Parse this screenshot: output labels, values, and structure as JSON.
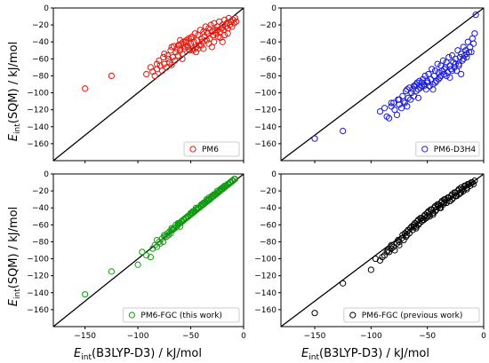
{
  "figure": {
    "ylabel_main": "E",
    "ylabel_sub": "int",
    "ylabel_rest": "(SQM) / kJ/mol",
    "xlabel_main": "E",
    "xlabel_sub": "int",
    "xlabel_rest": "(B3LYP-D3) / kJ/mol"
  },
  "chart_data": [
    {
      "type": "scatter",
      "legend": "PM6",
      "legend_position": "lower-right",
      "color": "#e8160c",
      "xlim": [
        -180,
        0
      ],
      "ylim": [
        -180,
        0
      ],
      "xticks": [
        -150,
        -100,
        -50,
        0
      ],
      "yticks": [
        -160,
        -140,
        -120,
        -100,
        -80,
        -60,
        -40,
        -20,
        0
      ],
      "reference_line": "y = x",
      "x": [
        -150,
        -125,
        -92,
        -88,
        -86,
        -84,
        -82,
        -80,
        -79,
        -77,
        -76,
        -75,
        -73,
        -72,
        -71,
        -70,
        -69,
        -68,
        -67,
        -66,
        -65,
        -64,
        -63,
        -62,
        -61,
        -60,
        -59,
        -58,
        -57,
        -56,
        -55,
        -54,
        -53,
        -52,
        -51,
        -50,
        -49,
        -48,
        -47,
        -46,
        -45,
        -44,
        -43,
        -42,
        -41,
        -40,
        -39,
        -38,
        -37,
        -36,
        -35,
        -34,
        -33,
        -32,
        -31,
        -30,
        -29,
        -28,
        -27,
        -26,
        -25,
        -24,
        -23,
        -22,
        -21,
        -20,
        -19,
        -18,
        -17,
        -16,
        -15,
        -14,
        -13,
        -12,
        -11,
        -10,
        -9,
        -8,
        -7,
        -20,
        -30,
        -45,
        -55,
        -62,
        -75,
        -82,
        -40,
        -50,
        -35,
        -25,
        -18,
        -60,
        -68,
        -48,
        -58,
        -38,
        -28,
        -22,
        -15,
        -33,
        -43,
        -53
      ],
      "y": [
        -95,
        -80,
        -78,
        -70,
        -75,
        -80,
        -72,
        -62,
        -68,
        -74,
        -58,
        -66,
        -70,
        -56,
        -60,
        -64,
        -50,
        -67,
        -58,
        -45,
        -62,
        -52,
        -48,
        -56,
        -44,
        -50,
        -42,
        -60,
        -40,
        -48,
        -46,
        -38,
        -44,
        -36,
        -50,
        -42,
        -34,
        -48,
        -40,
        -30,
        -46,
        -38,
        -32,
        -44,
        -26,
        -36,
        -40,
        -28,
        -34,
        -22,
        -38,
        -30,
        -24,
        -36,
        -20,
        -28,
        -32,
        -18,
        -26,
        -30,
        -22,
        -34,
        -16,
        -28,
        -24,
        -20,
        -26,
        -14,
        -22,
        -18,
        -24,
        -12,
        -20,
        -16,
        -22,
        -14,
        -18,
        -12,
        -16,
        -40,
        -46,
        -52,
        -40,
        -44,
        -54,
        -66,
        -44,
        -36,
        -28,
        -26,
        -32,
        -38,
        -46,
        -50,
        -54,
        -48,
        -40,
        -35,
        -30,
        -42,
        -48,
        -46
      ]
    },
    {
      "type": "scatter",
      "legend": "PM6-D3H4",
      "legend_position": "lower-right",
      "color": "#1a1adb",
      "xlim": [
        -180,
        0
      ],
      "ylim": [
        -180,
        0
      ],
      "xticks": [
        -150,
        -100,
        -50,
        0
      ],
      "yticks": [
        -160,
        -140,
        -120,
        -100,
        -80,
        -60,
        -40,
        -20,
        0
      ],
      "reference_line": "y = x",
      "x": [
        -150,
        -125,
        -92,
        -88,
        -86,
        -84,
        -82,
        -80,
        -79,
        -77,
        -76,
        -75,
        -73,
        -72,
        -71,
        -70,
        -69,
        -68,
        -67,
        -66,
        -65,
        -64,
        -63,
        -62,
        -61,
        -60,
        -59,
        -58,
        -57,
        -56,
        -55,
        -54,
        -53,
        -52,
        -51,
        -50,
        -49,
        -48,
        -47,
        -46,
        -45,
        -44,
        -43,
        -42,
        -41,
        -40,
        -39,
        -38,
        -37,
        -36,
        -35,
        -34,
        -33,
        -32,
        -31,
        -30,
        -29,
        -28,
        -27,
        -26,
        -25,
        -24,
        -23,
        -22,
        -21,
        -20,
        -19,
        -18,
        -17,
        -16,
        -15,
        -14,
        -13,
        -12,
        -11,
        -10,
        -9,
        -8,
        -7,
        -20,
        -30,
        -45,
        -55,
        -62,
        -75,
        -82,
        -40,
        -50,
        -35,
        -25,
        -18,
        -60,
        -68,
        -48,
        -58,
        -38,
        -28,
        -22,
        -15,
        -33,
        -43,
        -53
      ],
      "y": [
        -154,
        -145,
        -122,
        -118,
        -128,
        -130,
        -116,
        -112,
        -120,
        -126,
        -108,
        -114,
        -118,
        -104,
        -110,
        -112,
        -98,
        -116,
        -106,
        -94,
        -108,
        -100,
        -96,
        -104,
        -92,
        -98,
        -88,
        -106,
        -86,
        -94,
        -92,
        -84,
        -90,
        -80,
        -96,
        -88,
        -78,
        -92,
        -84,
        -72,
        -90,
        -80,
        -74,
        -86,
        -66,
        -76,
        -82,
        -68,
        -74,
        -62,
        -78,
        -70,
        -64,
        -76,
        -58,
        -68,
        -72,
        -56,
        -64,
        -70,
        -60,
        -74,
        -50,
        -66,
        -58,
        -54,
        -62,
        -46,
        -56,
        -50,
        -58,
        -40,
        -52,
        -46,
        -52,
        -36,
        -42,
        -30,
        -8,
        -78,
        -82,
        -96,
        -88,
        -92,
        -108,
        -112,
        -84,
        -86,
        -72,
        -66,
        -60,
        -90,
        -96,
        -92,
        -96,
        -80,
        -74,
        -68,
        -54,
        -80,
        -88,
        -92
      ]
    },
    {
      "type": "scatter",
      "legend": "PM6-FGC (this work)",
      "legend_position": "lower-right",
      "color": "#109b10",
      "xlim": [
        -180,
        0
      ],
      "ylim": [
        -180,
        0
      ],
      "xticks": [
        -150,
        -100,
        -50,
        0
      ],
      "yticks": [
        -160,
        -140,
        -120,
        -100,
        -80,
        -60,
        -40,
        -20,
        0
      ],
      "reference_line": "y = x",
      "x": [
        -150,
        -125,
        -100,
        -96,
        -92,
        -88,
        -86,
        -84,
        -82,
        -80,
        -79,
        -77,
        -76,
        -75,
        -73,
        -72,
        -71,
        -70,
        -69,
        -68,
        -67,
        -66,
        -65,
        -64,
        -63,
        -62,
        -61,
        -60,
        -59,
        -58,
        -57,
        -56,
        -55,
        -54,
        -53,
        -52,
        -51,
        -50,
        -49,
        -48,
        -47,
        -46,
        -45,
        -44,
        -43,
        -42,
        -41,
        -40,
        -39,
        -38,
        -37,
        -36,
        -35,
        -34,
        -33,
        -32,
        -31,
        -30,
        -29,
        -28,
        -27,
        -26,
        -25,
        -24,
        -23,
        -22,
        -21,
        -20,
        -19,
        -18,
        -17,
        -16,
        -15,
        -14,
        -13,
        -12,
        -11,
        -10,
        -9,
        -8,
        -20,
        -30,
        -45,
        -55,
        -62,
        -75,
        -82,
        -40,
        -50,
        -35,
        -25,
        -18,
        -60,
        -68,
        -48,
        -58,
        -38,
        -28,
        -22,
        -15,
        -33,
        -43,
        -53
      ],
      "y": [
        -142,
        -115,
        -107,
        -92,
        -96,
        -98,
        -88,
        -84,
        -86,
        -80,
        -82,
        -76,
        -80,
        -74,
        -74,
        -70,
        -72,
        -68,
        -70,
        -66,
        -66,
        -64,
        -64,
        -60,
        -62,
        -60,
        -58,
        -58,
        -56,
        -56,
        -54,
        -54,
        -52,
        -52,
        -50,
        -50,
        -48,
        -48,
        -46,
        -46,
        -44,
        -44,
        -42,
        -42,
        -40,
        -40,
        -38,
        -38,
        -36,
        -36,
        -34,
        -34,
        -32,
        -32,
        -30,
        -30,
        -28,
        -28,
        -26,
        -26,
        -24,
        -24,
        -22,
        -22,
        -20,
        -20,
        -18,
        -18,
        -16,
        -16,
        -14,
        -14,
        -12,
        -12,
        -10,
        -10,
        -8,
        -8,
        -6,
        -6,
        -16,
        -26,
        -40,
        -52,
        -58,
        -72,
        -78,
        -36,
        -46,
        -30,
        -20,
        -14,
        -62,
        -64,
        -44,
        -56,
        -34,
        -24,
        -18,
        -12,
        -28,
        -40,
        -50
      ]
    },
    {
      "type": "scatter",
      "legend": "PM6-FGC (previous work)",
      "legend_position": "lower-right",
      "color": "#000000",
      "xlim": [
        -180,
        0
      ],
      "ylim": [
        -180,
        0
      ],
      "xticks": [
        -150,
        -100,
        -50,
        0
      ],
      "yticks": [
        -160,
        -140,
        -120,
        -100,
        -80,
        -60,
        -40,
        -20,
        0
      ],
      "reference_line": "y = x",
      "x": [
        -150,
        -125,
        -100,
        -96,
        -92,
        -88,
        -86,
        -84,
        -82,
        -80,
        -79,
        -77,
        -76,
        -75,
        -73,
        -72,
        -71,
        -70,
        -69,
        -68,
        -67,
        -66,
        -65,
        -64,
        -63,
        -62,
        -61,
        -60,
        -59,
        -58,
        -57,
        -56,
        -55,
        -54,
        -53,
        -52,
        -51,
        -50,
        -49,
        -48,
        -47,
        -46,
        -45,
        -44,
        -43,
        -42,
        -41,
        -40,
        -39,
        -38,
        -37,
        -36,
        -35,
        -34,
        -33,
        -32,
        -31,
        -30,
        -29,
        -28,
        -27,
        -26,
        -25,
        -24,
        -23,
        -22,
        -21,
        -20,
        -19,
        -18,
        -17,
        -16,
        -15,
        -14,
        -13,
        -12,
        -11,
        -10,
        -9,
        -8,
        -20,
        -30,
        -45,
        -55,
        -62,
        -75,
        -82,
        -40,
        -50,
        -35,
        -25,
        -18,
        -60,
        -68,
        -48,
        -58,
        -38,
        -28,
        -22,
        -15,
        -33,
        -43,
        -53,
        -90,
        -85
      ],
      "y": [
        -164,
        -129,
        -113,
        -100,
        -102,
        -96,
        -92,
        -92,
        -88,
        -86,
        -90,
        -82,
        -78,
        -84,
        -76,
        -72,
        -78,
        -70,
        -74,
        -68,
        -66,
        -70,
        -64,
        -62,
        -66,
        -60,
        -58,
        -62,
        -56,
        -54,
        -58,
        -52,
        -52,
        -54,
        -50,
        -48,
        -52,
        -46,
        -44,
        -48,
        -42,
        -42,
        -46,
        -40,
        -38,
        -42,
        -36,
        -36,
        -40,
        -34,
        -32,
        -36,
        -30,
        -30,
        -34,
        -28,
        -28,
        -32,
        -26,
        -24,
        -28,
        -22,
        -22,
        -26,
        -20,
        -18,
        -22,
        -16,
        -18,
        -20,
        -14,
        -14,
        -16,
        -12,
        -12,
        -14,
        -10,
        -10,
        -12,
        -8,
        -22,
        -32,
        -48,
        -56,
        -62,
        -80,
        -84,
        -38,
        -50,
        -34,
        -26,
        -20,
        -64,
        -72,
        -50,
        -60,
        -40,
        -30,
        -24,
        -18,
        -34,
        -44,
        -54,
        -98,
        -90
      ]
    }
  ]
}
